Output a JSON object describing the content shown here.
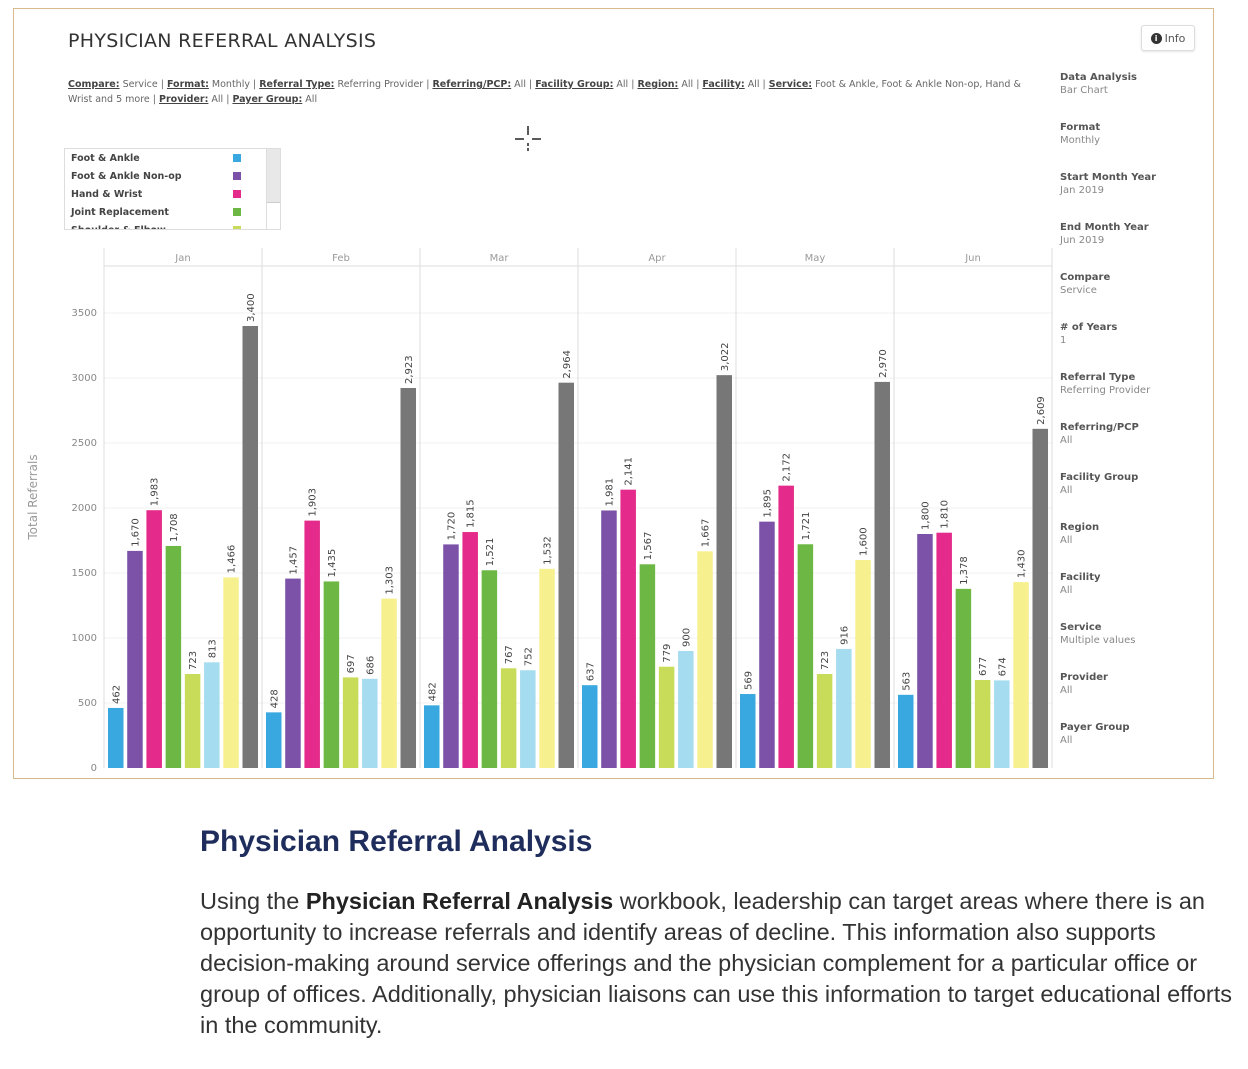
{
  "dashboard": {
    "title": "PHYSICIAN REFERRAL ANALYSIS",
    "info_label": "Info",
    "filters": [
      {
        "label": "Compare:",
        "value": "Service"
      },
      {
        "label": "Format:",
        "value": "Monthly"
      },
      {
        "label": "Referral Type:",
        "value": "Referring Provider"
      },
      {
        "label": "Referring/PCP:",
        "value": "All"
      },
      {
        "label": "Facility Group:",
        "value": "All"
      },
      {
        "label": "Region:",
        "value": "All"
      },
      {
        "label": "Facility:",
        "value": "All"
      },
      {
        "label": "Service:",
        "value": "Foot & Ankle, Foot & Ankle Non-op, Hand & Wrist and 5 more"
      },
      {
        "label": "Provider:",
        "value": "All"
      },
      {
        "label": "Payer Group:",
        "value": "All"
      }
    ],
    "legend": [
      {
        "name": "Foot & Ankle",
        "color": "#3aa8e0"
      },
      {
        "name": "Foot & Ankle Non-op",
        "color": "#7b52a8"
      },
      {
        "name": "Hand & Wrist",
        "color": "#e42a8a"
      },
      {
        "name": "Joint Replacement",
        "color": "#6db844"
      },
      {
        "name": "Shoulder & Elbow",
        "color": "#c8dc5a"
      }
    ],
    "side_panel": [
      {
        "label": "Data Analysis",
        "value": "Bar Chart"
      },
      {
        "label": "Format",
        "value": "Monthly"
      },
      {
        "label": "Start Month Year",
        "value": "Jan 2019"
      },
      {
        "label": "End Month Year",
        "value": "Jun 2019"
      },
      {
        "label": "Compare",
        "value": "Service"
      },
      {
        "label": "# of Years",
        "value": "1"
      },
      {
        "label": "Referral Type",
        "value": "Referring Provider"
      },
      {
        "label": "Referring/PCP",
        "value": "All"
      },
      {
        "label": "Facility Group",
        "value": "All"
      },
      {
        "label": "Region",
        "value": "All"
      },
      {
        "label": "Facility",
        "value": "All"
      },
      {
        "label": "Service",
        "value": "Multiple values"
      },
      {
        "label": "Provider",
        "value": "All"
      },
      {
        "label": "Payer Group",
        "value": "All"
      }
    ]
  },
  "chart_data": {
    "type": "bar",
    "title": "PHYSICIAN REFERRAL ANALYSIS",
    "xlabel": "",
    "ylabel": "Total Referrals",
    "ylim": [
      0,
      3700
    ],
    "yticks": [
      0,
      500,
      1000,
      1500,
      2000,
      2500,
      3000,
      3500
    ],
    "categories": [
      "Jan",
      "Feb",
      "Mar",
      "Apr",
      "May",
      "Jun"
    ],
    "grid": true,
    "series": [
      {
        "name": "Foot & Ankle",
        "color": "#3aa8e0",
        "values": [
          462,
          428,
          482,
          637,
          569,
          563
        ]
      },
      {
        "name": "Foot & Ankle Non-op",
        "color": "#7b52a8",
        "values": [
          1670,
          1457,
          1720,
          1981,
          1895,
          1800
        ]
      },
      {
        "name": "Hand & Wrist",
        "color": "#e42a8a",
        "values": [
          1983,
          1903,
          1815,
          2141,
          2172,
          1810
        ]
      },
      {
        "name": "Joint Replacement",
        "color": "#6db844",
        "values": [
          1708,
          1435,
          1521,
          1567,
          1721,
          1378
        ]
      },
      {
        "name": "Shoulder & Elbow",
        "color": "#c8dc5a",
        "values": [
          723,
          697,
          767,
          779,
          723,
          677
        ]
      },
      {
        "name": "",
        "color": "#a6dcef",
        "values": [
          813,
          686,
          752,
          900,
          916,
          674
        ]
      },
      {
        "name": "",
        "color": "#f7f08e",
        "values": [
          1466,
          1303,
          1532,
          1667,
          1600,
          1430
        ]
      },
      {
        "name": "",
        "color": "#777777",
        "values": [
          3400,
          2923,
          2964,
          3022,
          2970,
          2609
        ]
      }
    ]
  },
  "document": {
    "heading": "Physician Referral Analysis",
    "para_pre": "Using the ",
    "para_bold": "Physician Referral Analysis",
    "para_post": " workbook, leadership can target areas where there is an opportunity to increase referrals and identify areas of decline. This information also supports decision-making around service offerings and the physician complement for a particular office or group of offices. Additionally, physician liaisons can use this information to target educational efforts in the community."
  }
}
